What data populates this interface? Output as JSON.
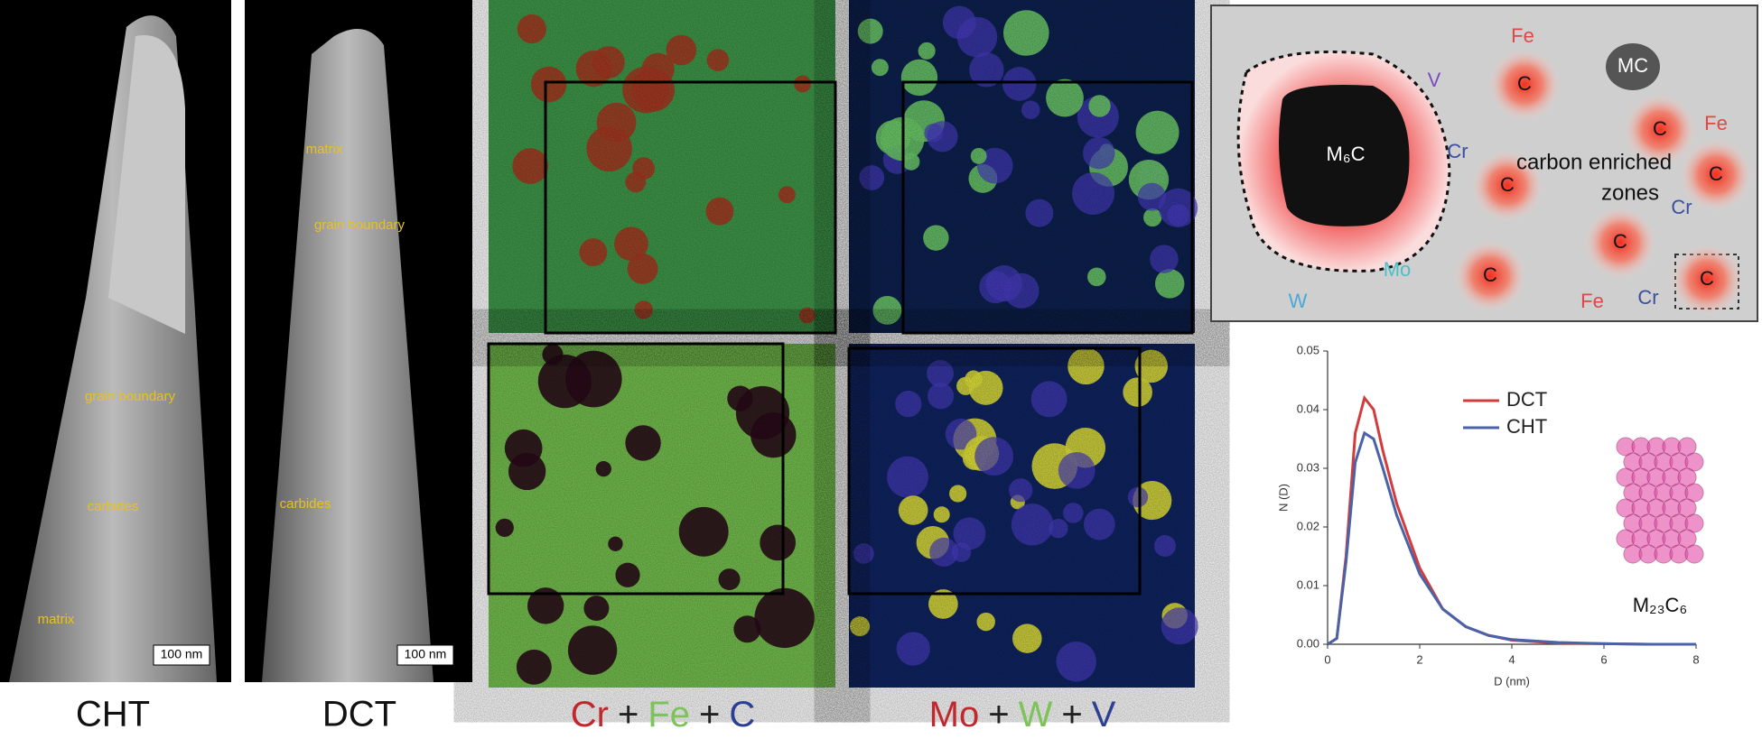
{
  "sem_panels": [
    {
      "caption": "CHT",
      "labels": [
        "grain boundary",
        "carbides",
        "matrix"
      ],
      "scale_bar": "100 nm"
    },
    {
      "caption": "DCT",
      "labels": [
        "matrix",
        "grain boundary",
        "carbides"
      ],
      "scale_bar": "100 nm"
    }
  ],
  "map_captions": [
    {
      "parts": [
        {
          "text": "Cr",
          "color": "#c0282d"
        },
        {
          "text": "+",
          "color": "#222222"
        },
        {
          "text": "Fe",
          "color": "#7cc35a"
        },
        {
          "text": "+",
          "color": "#222222"
        },
        {
          "text": "C",
          "color": "#2c3f93"
        }
      ]
    },
    {
      "parts": [
        {
          "text": "Mo",
          "color": "#c0282d"
        },
        {
          "text": "+",
          "color": "#222222"
        },
        {
          "text": "W",
          "color": "#7cc35a"
        },
        {
          "text": "+",
          "color": "#222222"
        },
        {
          "text": "V",
          "color": "#2c3f93"
        }
      ]
    }
  ],
  "schematic": {
    "particles": [
      "M₆C",
      "MC"
    ],
    "carbon": "C",
    "zone_label": [
      "carbon enriched",
      "zones"
    ],
    "elements": [
      {
        "text": "Fe",
        "color": "#e04848"
      },
      {
        "text": "V",
        "color": "#7a4bc0"
      },
      {
        "text": "Cr",
        "color": "#3a4fa0"
      },
      {
        "text": "Fe",
        "color": "#e04848"
      },
      {
        "text": "Cr",
        "color": "#3a4fa0"
      },
      {
        "text": "Fe",
        "color": "#e04848"
      },
      {
        "text": "Cr",
        "color": "#3a4fa0"
      },
      {
        "text": "W",
        "color": "#4aa8d8"
      },
      {
        "text": "Mo",
        "color": "#4ac0c8"
      }
    ]
  },
  "chart_data": {
    "type": "line",
    "x_label": "D (nm)",
    "y_label": "N (D)",
    "annotation": "M₂₃C₆",
    "x": [
      0,
      0.2,
      0.4,
      0.6,
      0.8,
      1.0,
      1.2,
      1.5,
      2,
      2.5,
      3,
      3.5,
      4,
      5,
      6,
      7,
      8
    ],
    "series": [
      {
        "name": "DCT",
        "color": "#d33c3c",
        "values": [
          0,
          0.001,
          0.015,
          0.036,
          0.042,
          0.04,
          0.033,
          0.024,
          0.013,
          0.006,
          0.003,
          0.0015,
          0.0007,
          0.0002,
          0.0001,
          0,
          0
        ]
      },
      {
        "name": "CHT",
        "color": "#4a62a8",
        "values": [
          0,
          0.001,
          0.014,
          0.031,
          0.036,
          0.035,
          0.03,
          0.022,
          0.012,
          0.006,
          0.003,
          0.0015,
          0.0008,
          0.0003,
          0.0001,
          0,
          0
        ]
      }
    ],
    "xlim": [
      0,
      8
    ],
    "ylim": [
      0,
      0.05
    ],
    "xticks": [
      0,
      2,
      4,
      6,
      8
    ],
    "yticks": [
      {
        "value": 0,
        "label": "0.00"
      },
      {
        "value": 0.01,
        "label": "0.01"
      },
      {
        "value": 0.02,
        "label": "0.02"
      },
      {
        "value": 0.03,
        "label": "0.03"
      },
      {
        "value": 0.04,
        "label": "0.04"
      },
      {
        "value": 0.05,
        "label": "0.05"
      }
    ],
    "legend": "upper-right"
  }
}
